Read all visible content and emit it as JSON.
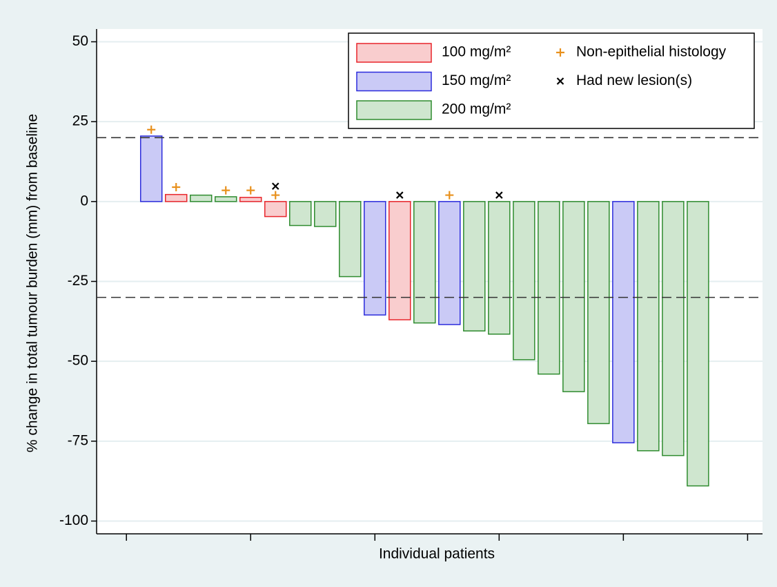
{
  "chart_data": {
    "type": "waterfall",
    "y_label": "% change in total tumour burden (mm) from baseline",
    "x_label": "Individual patients",
    "xlim": [
      -1.2,
      25.6
    ],
    "xticks": [
      0,
      5,
      10,
      15,
      20,
      25
    ],
    "ylim": [
      -104,
      54
    ],
    "yticks": [
      50,
      25,
      0,
      -25,
      -50,
      -75,
      -100
    ],
    "grid": true,
    "reference_lines": [
      20,
      -30
    ],
    "legend_position": "top-right",
    "series": [
      {
        "name": "100 mg/m²",
        "color": "#e8242a",
        "fill": "#f9cdce",
        "x": [
          2,
          5,
          6,
          11
        ],
        "values": [
          2.2,
          1.3,
          -4.7,
          -37
        ]
      },
      {
        "name": "150 mg/m²",
        "color": "#2b2bdc",
        "fill": "#cacaf6",
        "x": [
          1,
          10,
          13,
          20
        ],
        "values": [
          20.5,
          -35.5,
          -38.5,
          -75.5
        ]
      },
      {
        "name": "200 mg/m²",
        "color": "#2e8b2e",
        "fill": "#cfe6cf",
        "x": [
          3,
          4,
          7,
          8,
          9,
          12,
          14,
          15,
          16,
          17,
          18,
          19,
          21,
          22,
          23
        ],
        "values": [
          2,
          1.5,
          -7.5,
          -7.8,
          -23.5,
          -38,
          -40.5,
          -41.5,
          -49.5,
          -54,
          -59.5,
          -69.5,
          -78,
          -79.5,
          -89
        ]
      }
    ],
    "markers": [
      {
        "name": "Non-epithelial histology",
        "color": "#e8901c",
        "symbol": "plus",
        "x": [
          1,
          2,
          4,
          5,
          6,
          13
        ],
        "values": [
          22.5,
          4.5,
          3.5,
          3.5,
          2,
          2
        ]
      },
      {
        "name": "Had new lesion(s)",
        "color": "#000000",
        "symbol": "cross",
        "x": [
          6,
          11,
          15
        ],
        "values": [
          4.8,
          2,
          2
        ]
      }
    ]
  }
}
